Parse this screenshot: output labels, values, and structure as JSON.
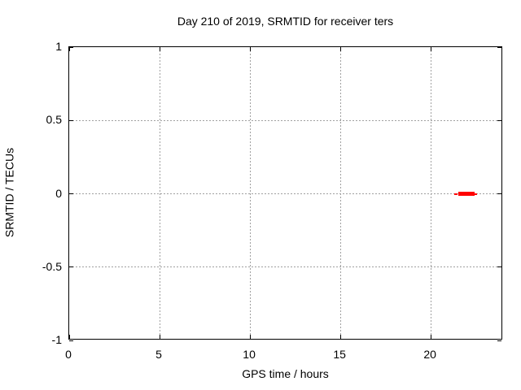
{
  "chart_data": {
    "type": "scatter",
    "title": "Day 210 of 2019, SRMTID for receiver ters",
    "xlabel": "GPS time / hours",
    "ylabel": "SRMTID / TECUs",
    "xlim": [
      0,
      24
    ],
    "ylim": [
      -1,
      1
    ],
    "xticks": [
      {
        "value": 0,
        "label": "0"
      },
      {
        "value": 5,
        "label": "5"
      },
      {
        "value": 10,
        "label": "10"
      },
      {
        "value": 15,
        "label": "15"
      },
      {
        "value": 20,
        "label": "20"
      }
    ],
    "yticks": [
      {
        "value": 1,
        "label": "1"
      },
      {
        "value": 0.5,
        "label": "0.5"
      },
      {
        "value": 0,
        "label": "0"
      },
      {
        "value": -0.5,
        "label": "-0.5"
      },
      {
        "value": -1,
        "label": "-1"
      }
    ],
    "grid": true,
    "legend": "none",
    "series": [
      {
        "name": "SRMTID",
        "color": "#ff0000",
        "marker": "square",
        "points": [
          {
            "x": 21.62,
            "y": 0
          },
          {
            "x": 21.71,
            "y": 0
          },
          {
            "x": 21.8,
            "y": 0
          },
          {
            "x": 21.9,
            "y": 0
          },
          {
            "x": 21.99,
            "y": 0
          },
          {
            "x": 22.08,
            "y": 0
          },
          {
            "x": 22.17,
            "y": 0
          },
          {
            "x": 22.26,
            "y": 0
          },
          {
            "x": 22.33,
            "y": 0
          }
        ],
        "error_bars": [
          {
            "x": 21.38,
            "y": 0,
            "xerr": 0.1
          },
          {
            "x": 21.7,
            "y": 0,
            "yerr": 0.013
          },
          {
            "x": 21.82,
            "y": 0,
            "yerr": 0.013
          },
          {
            "x": 22.45,
            "y": 0,
            "xerr": 0.1
          }
        ]
      }
    ]
  },
  "colors": {
    "background": "#ffffff",
    "axis": "#000000",
    "grid": "#a0a0a0",
    "text": "#000000",
    "series_red": "#ff0000"
  }
}
